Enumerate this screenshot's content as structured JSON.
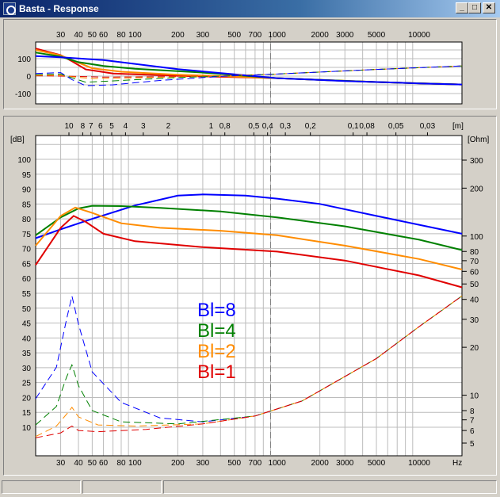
{
  "window": {
    "title": "Basta - Response"
  },
  "controls": {
    "minimize": "_",
    "maximize": "□",
    "close": "✕"
  },
  "colors": {
    "blue": "#0000ff",
    "green": "#008000",
    "orange": "#ff8c00",
    "red": "#e00000",
    "grid": "#bcbcbc"
  },
  "top_chart": {
    "freq_ticks": [
      "30",
      "40",
      "50",
      "60",
      "80",
      "100",
      "200",
      "300",
      "500",
      "700",
      "1000",
      "2000",
      "3000",
      "5000",
      "10000"
    ],
    "y_ticks": [
      "100",
      "0",
      "-100"
    ]
  },
  "main_chart": {
    "wavelength_ticks": [
      "10",
      "8",
      "7",
      "6",
      "5",
      "4",
      "3",
      "2",
      "1",
      "0,8",
      "0,5",
      "0,4",
      "0,3",
      "0,2",
      "0,1",
      "0,08",
      "0,05",
      "0,03"
    ],
    "wavelength_unit": "[m]",
    "db_unit": "[dB]",
    "ohm_unit": "[Ohm]",
    "db_ticks": [
      "100",
      "95",
      "90",
      "85",
      "80",
      "75",
      "70",
      "65",
      "60",
      "55",
      "50",
      "45",
      "40",
      "35",
      "30",
      "25",
      "20",
      "15",
      "10"
    ],
    "ohm_ticks": [
      "300",
      "200",
      "100",
      "80",
      "70",
      "60",
      "50",
      "40",
      "30",
      "20",
      "10",
      "8",
      "7",
      "6",
      "5"
    ],
    "freq_ticks": [
      "30",
      "40",
      "50",
      "60",
      "80",
      "100",
      "200",
      "300",
      "500",
      "700",
      "1000",
      "2000",
      "3000",
      "5000",
      "10000"
    ],
    "freq_unit": "Hz",
    "legend": [
      "Bl=8",
      "Bl=4",
      "Bl=2",
      "Bl=1"
    ]
  },
  "status": [
    "",
    "",
    ""
  ]
}
